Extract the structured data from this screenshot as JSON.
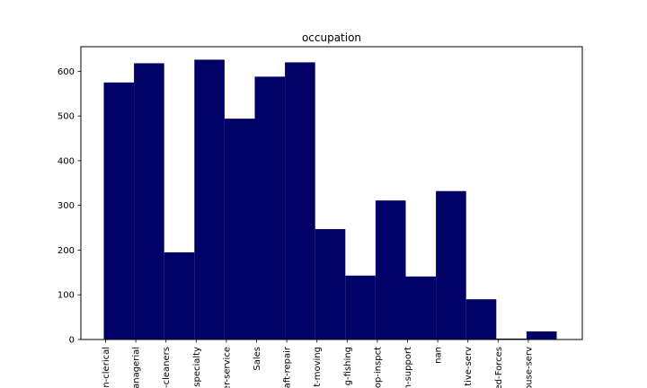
{
  "chart_data": {
    "type": "bar",
    "title": "occupation",
    "xlabel": "",
    "ylabel": "",
    "categories": [
      "n-clerical",
      "anagerial",
      "-cleaners",
      "specialty",
      "er-service",
      "Sales",
      "aft-repair",
      "t-moving",
      "g-fishing",
      "op-inspct",
      "n-support",
      "nan",
      "tive-serv",
      "ed-Forces",
      "ouse-serv"
    ],
    "values": [
      575,
      618,
      195,
      626,
      494,
      588,
      620,
      247,
      143,
      311,
      141,
      332,
      90,
      2,
      18
    ],
    "ylim": [
      0,
      655
    ],
    "yticks": [
      0,
      100,
      200,
      300,
      400,
      500,
      600
    ],
    "bar_color": "#000066",
    "grid": false,
    "legend": "none"
  }
}
